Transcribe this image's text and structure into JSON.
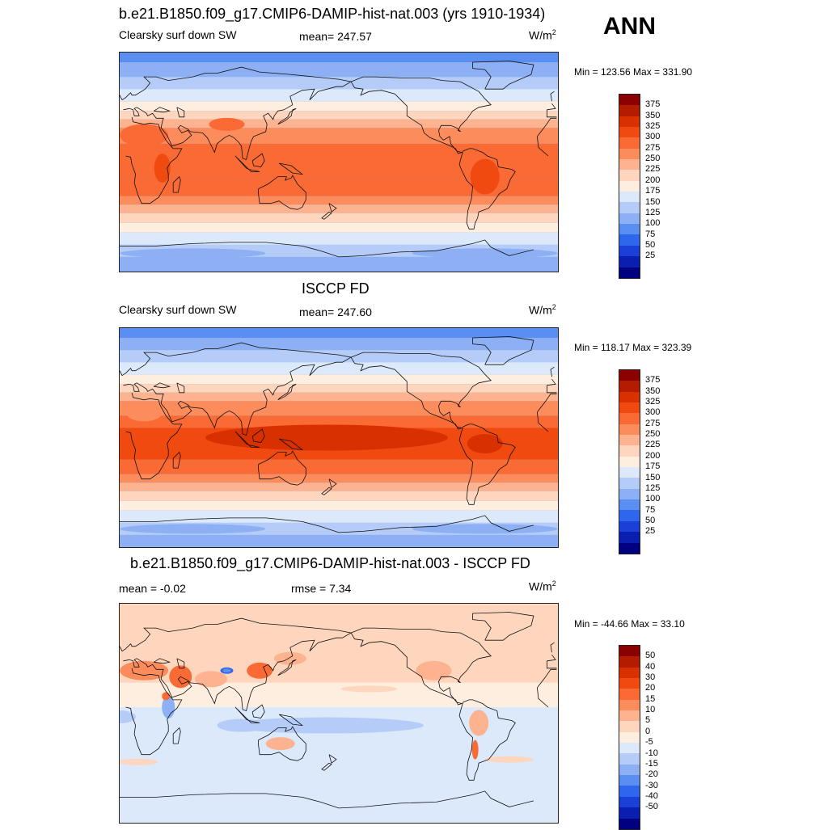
{
  "season": "ANN",
  "panels": [
    {
      "title": "b.e21.B1850.f09_g17.CMIP6-DAMIP-hist-nat.003 (yrs 1910-1934)",
      "left_label": "Clearsky surf down SW",
      "center_label": "mean= 247.57",
      "units_base": "W/m",
      "units_exp": "2",
      "minmax": "Min = 123.56 Max = 331.90",
      "scale": "abs",
      "equator_level": 300,
      "band_profile": [
        [
          90,
          100
        ],
        [
          82,
          125
        ],
        [
          70,
          150
        ],
        [
          60,
          175
        ],
        [
          50,
          200
        ],
        [
          42,
          225
        ],
        [
          35,
          250
        ],
        [
          28,
          275
        ],
        [
          15,
          300
        ],
        [
          -15,
          300
        ],
        [
          -28,
          275
        ],
        [
          -35,
          250
        ],
        [
          -42,
          225
        ],
        [
          -50,
          200
        ],
        [
          -58,
          175
        ],
        [
          -68,
          150
        ],
        [
          -78,
          125
        ],
        [
          -90,
          150
        ]
      ]
    },
    {
      "title": "ISCCP FD",
      "left_label": "Clearsky surf down SW",
      "center_label": "mean= 247.60",
      "units_base": "W/m",
      "units_exp": "2",
      "minmax": "Min = 118.17 Max = 323.39",
      "scale": "abs",
      "equator_level": 325,
      "band_profile": [
        [
          90,
          100
        ],
        [
          82,
          125
        ],
        [
          72,
          150
        ],
        [
          62,
          175
        ],
        [
          52,
          200
        ],
        [
          44,
          225
        ],
        [
          37,
          250
        ],
        [
          30,
          275
        ],
        [
          18,
          300
        ],
        [
          8,
          325
        ],
        [
          -8,
          325
        ],
        [
          -18,
          300
        ],
        [
          -30,
          275
        ],
        [
          -37,
          250
        ],
        [
          -44,
          225
        ],
        [
          -52,
          200
        ],
        [
          -60,
          175
        ],
        [
          -70,
          150
        ],
        [
          -80,
          125
        ],
        [
          -90,
          125
        ]
      ]
    },
    {
      "title": "b.e21.B1850.f09_g17.CMIP6-DAMIP-hist-nat.003 - ISCCP FD",
      "left_label": "mean =  -0.02",
      "center_label": "rmse =   7.34",
      "units_base": "W/m",
      "units_exp": "2",
      "minmax": "Min = -44.66 Max =  33.10",
      "scale": "diff"
    }
  ],
  "colorbars": {
    "abs": {
      "labels": [
        "375",
        "350",
        "325",
        "300",
        "275",
        "250",
        "225",
        "200",
        "175",
        "150",
        "125",
        "100",
        "75",
        "50",
        "25"
      ],
      "colors": [
        "#8b0000",
        "#b41c00",
        "#d93000",
        "#f04a10",
        "#fa6a35",
        "#fc8c5c",
        "#fdb38f",
        "#fed6bd",
        "#fdeedf",
        "#dbe9fb",
        "#b4ccf7",
        "#8cb0f3",
        "#5a8ef0",
        "#2f66ee",
        "#1a40d8",
        "#0a1eb0",
        "#000080"
      ]
    },
    "diff": {
      "labels": [
        "50",
        "40",
        "30",
        "20",
        "15",
        "10",
        "5",
        "0",
        "-5",
        "-10",
        "-15",
        "-20",
        "-30",
        "-40",
        "-50"
      ],
      "colors": [
        "#8b0000",
        "#b41c00",
        "#d93000",
        "#f04a10",
        "#fa6a35",
        "#fc8c5c",
        "#fdb38f",
        "#fed6bd",
        "#fdeedf",
        "#dbe9fb",
        "#b4ccf7",
        "#8cb0f3",
        "#5a8ef0",
        "#2f66ee",
        "#1a40d8",
        "#0a1eb0",
        "#000080"
      ]
    }
  }
}
